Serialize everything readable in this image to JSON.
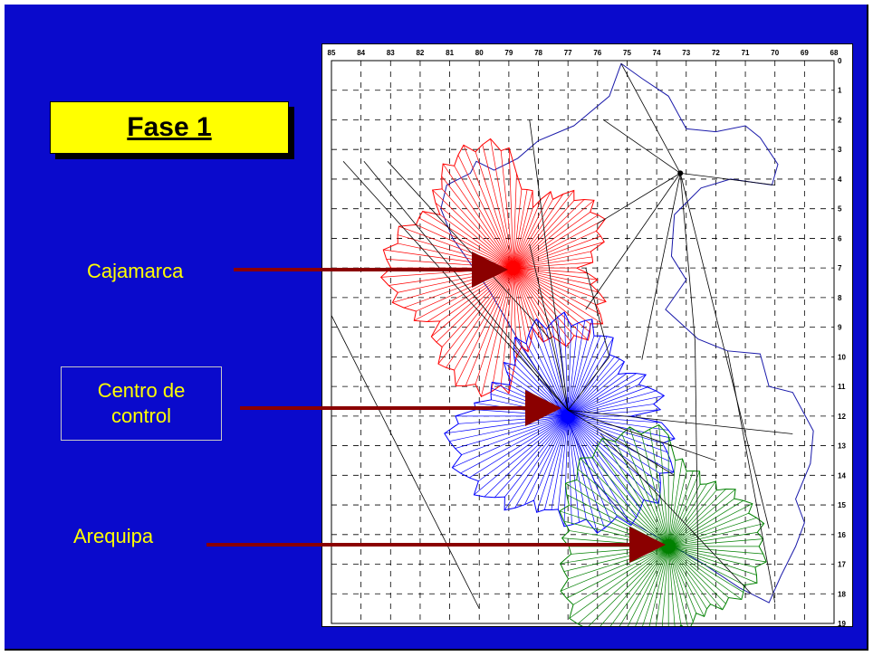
{
  "slide": {
    "title": "Fase 1",
    "labels": {
      "cajamarca": "Cajamarca",
      "centro_line1": "Centro de",
      "centro_line2": "control",
      "arequipa": "Arequipa"
    }
  },
  "map": {
    "top_axis": [
      "85",
      "84",
      "83",
      "82",
      "81",
      "80",
      "79",
      "78",
      "77",
      "76",
      "75",
      "74",
      "73",
      "72",
      "71",
      "70",
      "69",
      "68"
    ],
    "right_axis": [
      "0",
      "1",
      "2",
      "3",
      "4",
      "5",
      "6",
      "7",
      "8",
      "9",
      "10",
      "11",
      "12",
      "13",
      "14",
      "15",
      "16",
      "17",
      "18",
      "19"
    ],
    "colors": {
      "cajamarca": "#ff0000",
      "centro": "#0000ff",
      "arequipa": "#008000",
      "arrow": "#8b0000",
      "background": "#0a0acc",
      "title_box": "#ffff00"
    }
  }
}
